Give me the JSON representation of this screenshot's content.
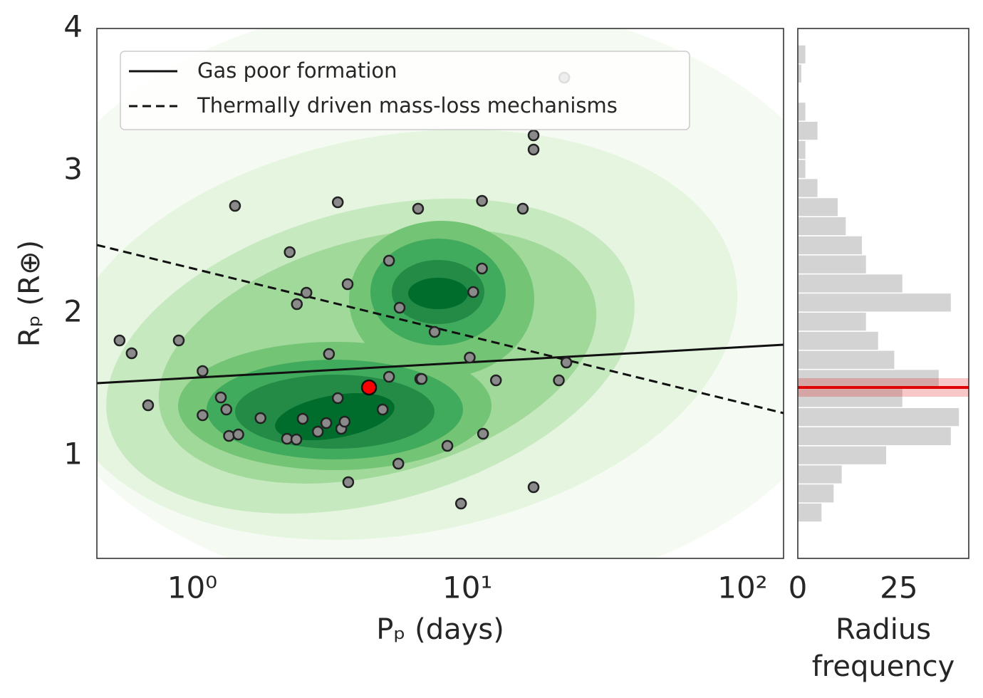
{
  "chart_data": [
    {
      "type": "scatter",
      "xlabel": "Pₚ (days)",
      "ylabel": "Rₚ (R⊕)",
      "xscale": "log",
      "xlim": [
        0.45,
        141
      ],
      "ylim": [
        0.28,
        4
      ],
      "xticks": [
        {
          "value": 1,
          "label": "10⁰"
        },
        {
          "value": 10,
          "label": "10¹"
        },
        {
          "value": 100,
          "label": "10²"
        }
      ],
      "yticks": [
        1,
        2,
        3,
        4
      ],
      "grid": false,
      "legend": "upper left",
      "point_color": "#8a8a8a",
      "x": [
        0.544,
        0.602,
        0.893,
        0.691,
        1.09,
        1.09,
        1.27,
        1.33,
        1.36,
        1.47,
        1.43,
        1.77,
        2.26,
        2.6,
        2.4,
        2.21,
        2.39,
        2.52,
        2.86,
        3.07,
        3.38,
        3.48,
        3.58,
        3.14,
        3.38,
        3.67,
        3.69,
        5.19,
        5.19,
        4.92,
        5.61,
        5.67,
        6.62,
        6.74,
        6.82,
        7.6,
        8.46,
        9.48,
        10.2,
        10.5,
        11.3,
        11.3,
        11.4,
        12.7,
        15.9,
        17.4,
        17.4,
        17.4,
        21.5,
        22.9,
        22.5
      ],
      "y": [
        1.81,
        1.72,
        1.81,
        1.355,
        1.595,
        1.285,
        1.41,
        1.325,
        1.14,
        1.15,
        2.755,
        1.265,
        2.43,
        2.145,
        2.065,
        1.12,
        1.115,
        1.26,
        1.17,
        1.23,
        1.405,
        1.19,
        1.24,
        1.715,
        2.78,
        2.205,
        0.815,
        2.37,
        1.555,
        1.325,
        0.945,
        2.04,
        2.735,
        1.54,
        1.54,
        1.87,
        1.07,
        0.665,
        1.69,
        2.15,
        2.79,
        2.315,
        1.155,
        1.53,
        2.735,
        3.25,
        3.15,
        0.78,
        1.53,
        1.655,
        3.655
      ],
      "highlight": {
        "x": 4.39,
        "y": 1.48,
        "color": "#ff0000"
      },
      "lines": [
        {
          "name": "Gas poor formation",
          "style": "solid",
          "color": "#111111",
          "x": [
            0.45,
            141
          ],
          "y": [
            1.51,
            1.78
          ]
        },
        {
          "name": "Thermally driven mass-loss mechanisms",
          "style": "dashed",
          "color": "#111111",
          "x": [
            0.45,
            141
          ],
          "y": [
            2.48,
            1.3
          ]
        }
      ]
    },
    {
      "type": "histogram",
      "orientation": "horizontal",
      "xlabel": "Radius frequency",
      "xlim": [
        0,
        42.3
      ],
      "ylim": [
        0.28,
        4
      ],
      "xticks": [
        0,
        25
      ],
      "color": "#d3d3d3",
      "bins": [
        0.535,
        0.669,
        0.803,
        0.937,
        1.071,
        1.205,
        1.339,
        1.473,
        1.607,
        1.741,
        1.875,
        2.009,
        2.143,
        2.277,
        2.411,
        2.545,
        2.679,
        2.813,
        2.947,
        3.081,
        3.215,
        3.349,
        3.483,
        3.617,
        3.751,
        3.885
      ],
      "counts": [
        6,
        9,
        11,
        22,
        38,
        40,
        26,
        35,
        24,
        20,
        17,
        38,
        26,
        17,
        16,
        12,
        10,
        5,
        2,
        2,
        5,
        2,
        0,
        1,
        2
      ],
      "marker_line": {
        "value": 1.48,
        "band": [
          1.415,
          1.545
        ],
        "color": "#e00000"
      }
    }
  ]
}
